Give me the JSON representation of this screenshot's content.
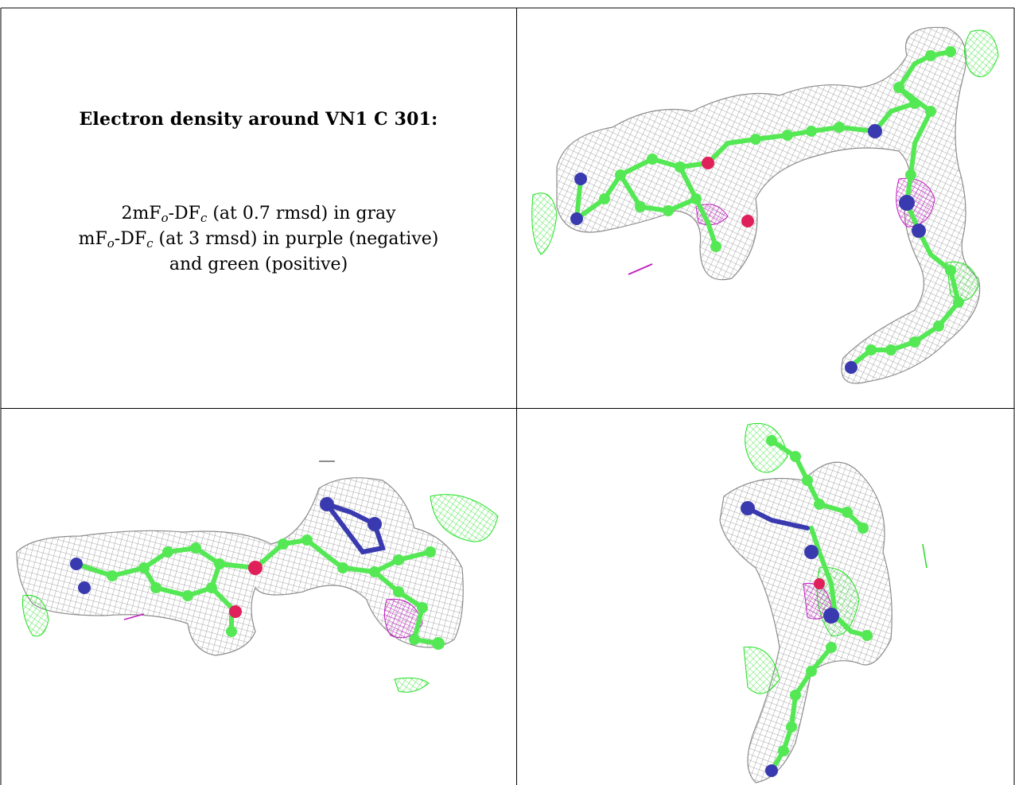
{
  "title": "Electron density around VN1 C 301:",
  "legend": {
    "line1": {
      "a": "2mF",
      "a_sub": "o",
      "b": "-DF",
      "b_sub": "c",
      "rest": " (at 0.7 rmsd) in gray"
    },
    "line2": {
      "a": "mF",
      "a_sub": "o",
      "b": "-DF",
      "b_sub": "c",
      "rest": " (at 3 rmsd) in purple (negative)"
    },
    "line3": "and green (positive)"
  },
  "colors": {
    "mesh_gray": "#8c8c8c",
    "carbon_green": "#55e855",
    "nitrogen_blue": "#3a3ab0",
    "oxygen_red": "#e0205a",
    "negative_purple": "#c020c0",
    "positive_green": "#22e022"
  },
  "panels": [
    {
      "name": "view-top-right",
      "description_icon": "molecule-density-view"
    },
    {
      "name": "view-bottom-left",
      "description_icon": "molecule-density-view"
    },
    {
      "name": "view-bottom-right",
      "description_icon": "molecule-density-view"
    }
  ]
}
